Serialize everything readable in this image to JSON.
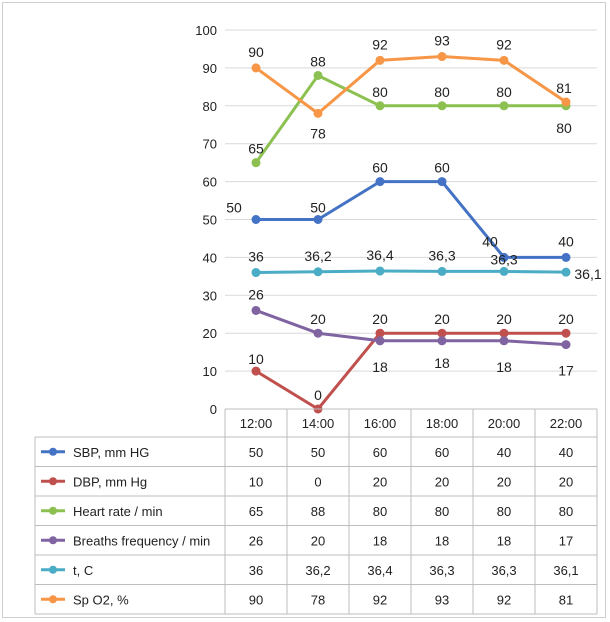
{
  "chart_data": {
    "type": "line",
    "categories": [
      "12:00",
      "14:00",
      "16:00",
      "18:00",
      "20:00",
      "22:00"
    ],
    "ylim": [
      0,
      100
    ],
    "yticks": [
      "0",
      "10",
      "20",
      "30",
      "40",
      "50",
      "60",
      "70",
      "80",
      "90",
      "100"
    ],
    "grid": "horizontal",
    "legend": "data-table-below",
    "series": [
      {
        "name": "SBP, mm HG",
        "color": "#4472c4",
        "values": [
          50,
          50,
          60,
          60,
          40,
          40
        ],
        "labels": [
          "50",
          "50",
          "60",
          "60",
          "40",
          "40"
        ],
        "table": [
          "50",
          "50",
          "60",
          "60",
          "40",
          "40"
        ]
      },
      {
        "name": "DBP, mm Hg",
        "color": "#c0504d",
        "values": [
          10,
          0,
          20,
          20,
          20,
          20
        ],
        "labels": [
          "10",
          "0",
          "20",
          "20",
          "20",
          "20"
        ],
        "table": [
          "10",
          "0",
          "20",
          "20",
          "20",
          "20"
        ]
      },
      {
        "name": "Heart rate / min",
        "color": "#8cc152",
        "values": [
          65,
          88,
          80,
          80,
          80,
          80
        ],
        "labels": [
          "65",
          "88",
          "80",
          "80",
          "80",
          "80"
        ],
        "table": [
          "65",
          "88",
          "80",
          "80",
          "80",
          "80"
        ]
      },
      {
        "name": "Breaths frequency / min",
        "color": "#8064a2",
        "values": [
          26,
          20,
          18,
          18,
          18,
          17
        ],
        "labels": [
          "26",
          "20",
          "18",
          "18",
          "18",
          "17"
        ],
        "table": [
          "26",
          "20",
          "18",
          "18",
          "18",
          "17"
        ]
      },
      {
        "name": "t, C",
        "color": "#4bacc6",
        "values": [
          36,
          36.2,
          36.4,
          36.3,
          36.3,
          36.1
        ],
        "labels": [
          "36",
          "36,2",
          "36,4",
          "36,3",
          "36,3",
          "36,1"
        ],
        "table": [
          "36",
          "36,2",
          "36,4",
          "36,3",
          "36,3",
          "36,1"
        ]
      },
      {
        "name": "Sp O2, %",
        "color": "#f79646",
        "values": [
          90,
          78,
          92,
          93,
          92,
          81
        ],
        "labels": [
          "90",
          "78",
          "92",
          "93",
          "92",
          "81"
        ],
        "table": [
          "90",
          "78",
          "92",
          "93",
          "92",
          "81"
        ]
      }
    ]
  }
}
